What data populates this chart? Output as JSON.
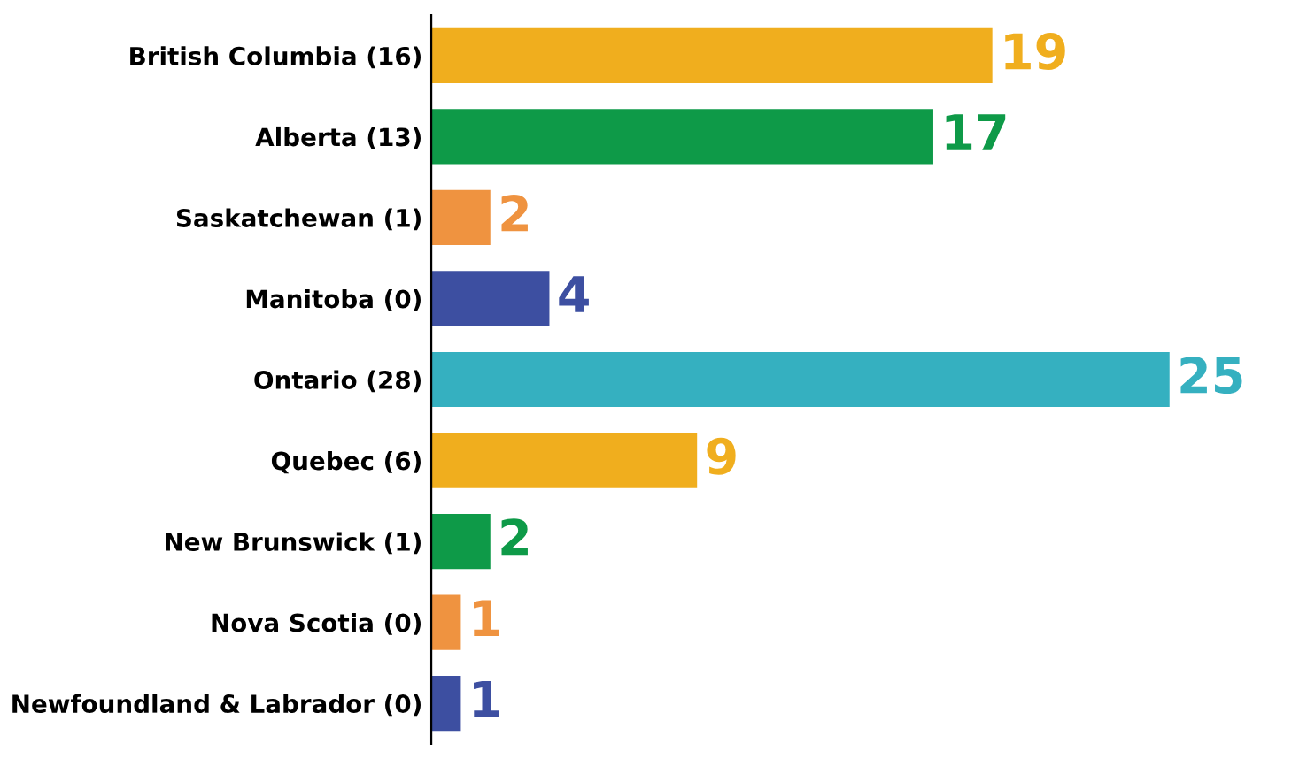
{
  "chart_data": {
    "type": "bar",
    "orientation": "horizontal",
    "categories": [
      "British Columbia (16)",
      "Alberta (13)",
      "Saskatchewan (1)",
      "Manitoba (0)",
      "Ontario (28)",
      "Quebec (6)",
      "New Brunswick (1)",
      "Nova Scotia (0)",
      "Newfoundland & Labrador (0)"
    ],
    "values": [
      19,
      17,
      2,
      4,
      25,
      9,
      2,
      1,
      1
    ],
    "colors": [
      "#f0ae1e",
      "#0e9a48",
      "#ef9340",
      "#3d4fa1",
      "#35b0c0",
      "#f0ae1e",
      "#0e9a48",
      "#ef9340",
      "#3d4fa1"
    ],
    "data_labels": true,
    "tick_labels": "y",
    "grid": false,
    "legend": false
  }
}
